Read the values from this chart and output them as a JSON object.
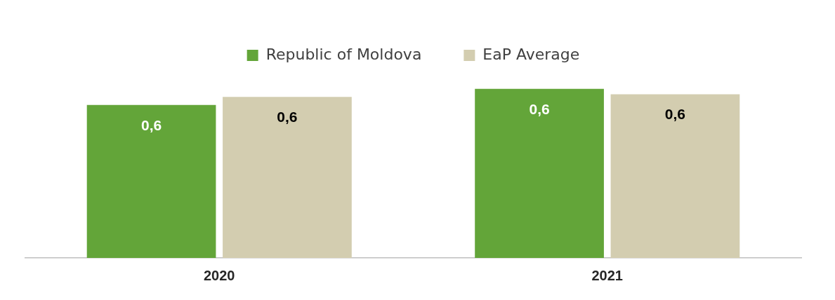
{
  "chart_data": {
    "type": "bar",
    "categories": [
      "2020",
      "2021"
    ],
    "tick_labels": "x",
    "series": [
      {
        "name": "Republic of Moldova",
        "color": "#63a539",
        "values": [
          0.57,
          0.63
        ],
        "value_labels": [
          "0,6",
          "0,6"
        ]
      },
      {
        "name": "EaP Average",
        "color": "#d3cdb0",
        "values": [
          0.6,
          0.61
        ],
        "value_labels": [
          "0,6",
          "0,6"
        ]
      }
    ],
    "legend": "top",
    "grid": false
  }
}
